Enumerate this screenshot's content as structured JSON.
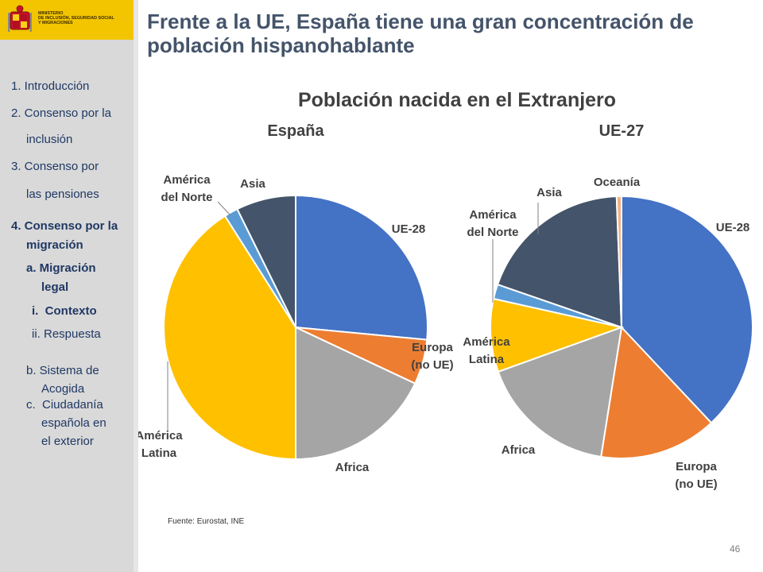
{
  "ministry": {
    "lines": [
      "MINISTERIO",
      "DE INCLUSIÓN, SEGURIDAD SOCIAL",
      "Y MIGRACIONES"
    ]
  },
  "sidebar": {
    "items": [
      {
        "label": "1. Introducción",
        "bold": false
      },
      {
        "label": "2. Consenso por la",
        "bold": false
      },
      {
        "label": "inclusión",
        "bold": false
      },
      {
        "label": "3. Consenso por",
        "bold": false
      },
      {
        "label": "las pensiones",
        "bold": false
      },
      {
        "label": "4. Consenso por la",
        "bold": true
      },
      {
        "label": "migración",
        "bold": true
      },
      {
        "label": "a. Migración",
        "bold": true
      },
      {
        "label": "legal",
        "bold": true
      },
      {
        "label": "i.  Contexto",
        "bold": true
      },
      {
        "label": "ii. Respuesta",
        "bold": false
      },
      {
        "label": "b. Sistema de",
        "bold": false
      },
      {
        "label": "Acogida",
        "bold": false
      },
      {
        "label": "c.  Ciudadanía",
        "bold": false
      },
      {
        "label": "española en",
        "bold": false
      },
      {
        "label": "el exterior",
        "bold": false
      }
    ]
  },
  "slide": {
    "title": "Frente a la UE, España tiene una gran concentración de población hispanohablante",
    "source": "Fuente:  Eurostat, INE",
    "page_number": "46"
  },
  "chart_data": {
    "title": "Población nacida en el Extranjero",
    "charts": [
      {
        "type": "pie",
        "title": "España",
        "slices": [
          {
            "label": "UE-28",
            "value": 26.5,
            "color": "#4472c4"
          },
          {
            "label": "Europa (no UE)",
            "value": 5.5,
            "color": "#ed7d31"
          },
          {
            "label": "Africa",
            "value": 18.0,
            "color": "#a5a5a5"
          },
          {
            "label": "América Latina",
            "value": 41.0,
            "color": "#ffc000"
          },
          {
            "label": "América del Norte",
            "value": 1.7,
            "color": "#5b9bd5"
          },
          {
            "label": "Asia",
            "value": 7.3,
            "color": "#44546a"
          }
        ]
      },
      {
        "type": "pie",
        "title": "UE-27",
        "slices": [
          {
            "label": "UE-28",
            "value": 38.0,
            "color": "#4472c4"
          },
          {
            "label": "Europa (no UE)",
            "value": 14.5,
            "color": "#ed7d31"
          },
          {
            "label": "Africa",
            "value": 17.0,
            "color": "#a5a5a5"
          },
          {
            "label": "América Latina",
            "value": 9.0,
            "color": "#ffc000"
          },
          {
            "label": "América del Norte",
            "value": 1.8,
            "color": "#5b9bd5"
          },
          {
            "label": "Asia",
            "value": 19.1,
            "color": "#44546a"
          },
          {
            "label": "Oceanía",
            "value": 0.6,
            "color": "#f4b183"
          }
        ]
      }
    ]
  }
}
